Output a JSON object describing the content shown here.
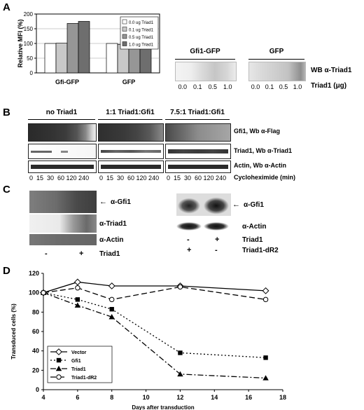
{
  "panels": {
    "a": "A",
    "b": "B",
    "c": "C",
    "d": "D"
  },
  "panel_a": {
    "chart_data": {
      "type": "bar",
      "ylabel": "Relative MFI (%)",
      "ylim": [
        0,
        200
      ],
      "yticks": [
        0,
        50,
        100,
        150,
        200
      ],
      "categories": [
        "Gfi-GFP",
        "GFP"
      ],
      "series": [
        {
          "name": "0.0 ug Triad1",
          "color": "#ffffff",
          "values": [
            100,
            100
          ]
        },
        {
          "name": "0.1 ug Triad1",
          "color": "#c8c8c8",
          "values": [
            101,
            97
          ]
        },
        {
          "name": "0.5 ug Triad1",
          "color": "#969696",
          "values": [
            168,
            93
          ]
        },
        {
          "name": "1.0 ug Triad1",
          "color": "#6e6e6e",
          "values": [
            175,
            87
          ]
        }
      ],
      "grid": true,
      "legend_position": "top-right"
    },
    "blot": {
      "group1": "Gfi1-GFP",
      "group2": "GFP",
      "wb_label": "WB α-Triad1",
      "amounts_g1": [
        "0.0",
        "0.1",
        "0.5",
        "1.0"
      ],
      "amounts_g2": [
        "0.0",
        "0.1",
        "0.5",
        "1.0"
      ],
      "amount_label": "Triad1 (μg)"
    }
  },
  "panel_b": {
    "groups": [
      "no Triad1",
      "1:1 Triad1:Gfi1",
      "7.5:1 Triad1:Gfi1"
    ],
    "rows": [
      "Gfi1, Wb α-Flag",
      "Triad1, Wb α-Triad1",
      "Actin, Wb α-Actin"
    ],
    "timepoints": "0  15  30  60 120 240",
    "time_label": "Cycloheximide (min)"
  },
  "panel_c": {
    "left": {
      "gfi1": "α-Gfi1",
      "triad1": "α-Triad1",
      "actin": "α-Actin",
      "minus": "-",
      "plus": "+",
      "treatment": "Triad1"
    },
    "right": {
      "gfi1": "α-Gfi1",
      "actin": "α-Actin",
      "minus1": "-",
      "plus1": "+",
      "treatment1": "Triad1",
      "plus2": "+",
      "minus2": "-",
      "treatment2": "Triad1-dR2"
    }
  },
  "panel_d": {
    "chart_data": {
      "type": "line",
      "xlabel": "Days after transduction",
      "ylabel": "Transduced cells (%)",
      "xlim": [
        4,
        18
      ],
      "ylim": [
        0,
        120
      ],
      "xticks": [
        4,
        6,
        8,
        10,
        12,
        14,
        16,
        18
      ],
      "yticks": [
        0,
        20,
        40,
        60,
        80,
        100,
        120
      ],
      "legend_position": "bottom-left",
      "series": [
        {
          "name": "Vector",
          "x": [
            4,
            6,
            8,
            12,
            17
          ],
          "y": [
            100,
            111,
            107,
            107,
            102
          ],
          "marker": "diamond",
          "dash": "solid"
        },
        {
          "name": "Gfi1",
          "x": [
            4,
            6,
            8,
            12,
            17
          ],
          "y": [
            100,
            93,
            83,
            38,
            33
          ],
          "marker": "square",
          "dash": "dot"
        },
        {
          "name": "Triad1",
          "x": [
            4,
            6,
            8,
            12,
            17
          ],
          "y": [
            100,
            87,
            75,
            16,
            12
          ],
          "marker": "triangle",
          "dash": "dashdot"
        },
        {
          "name": "Triad1-dR2",
          "x": [
            4,
            6,
            8,
            12,
            17
          ],
          "y": [
            100,
            105,
            93,
            106,
            93
          ],
          "marker": "circle",
          "dash": "dash"
        }
      ]
    }
  }
}
